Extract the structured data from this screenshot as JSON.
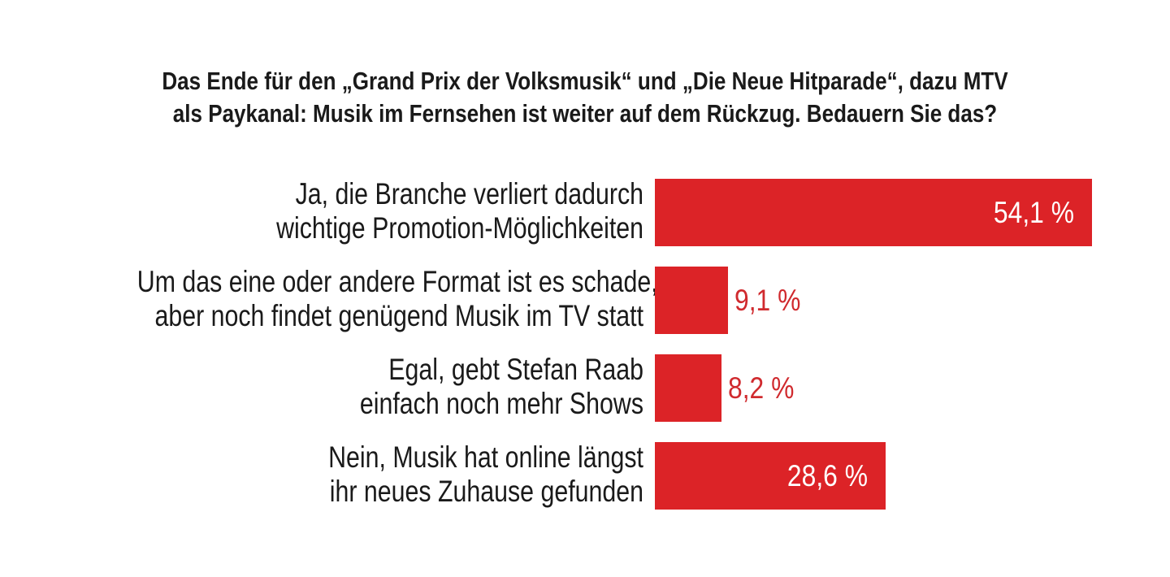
{
  "question": {
    "line1": "Das Ende für den „Grand Prix der Volksmusik“ und „Die Neue Hitparade“, dazu MTV",
    "line2": "als Paykanal: Musik im Fernsehen ist weiter auf dem Rückzug. Bedauern Sie das?"
  },
  "colors": {
    "bar": "#dc2327",
    "value_outside": "#d02a2e",
    "value_inside": "#ffffff"
  },
  "chart_data": {
    "type": "bar",
    "orientation": "horizontal",
    "unit": "%",
    "categories": [
      [
        "Ja, die Branche verliert dadurch",
        "wichtige Promotion-Möglichkeiten"
      ],
      [
        "Um das eine oder andere Format ist es schade,",
        "aber noch findet genügend Musik im TV statt"
      ],
      [
        "Egal, gebt Stefan Raab",
        "einfach noch mehr Shows"
      ],
      [
        "Nein, Musik hat online längst",
        "ihr neues Zuhause gefunden"
      ]
    ],
    "values": [
      54.1,
      9.1,
      8.2,
      28.6
    ],
    "value_labels": [
      "54,1 %",
      "9,1 %",
      "8,2 %",
      "28,6 %"
    ],
    "xlim": [
      0,
      54.1
    ]
  }
}
